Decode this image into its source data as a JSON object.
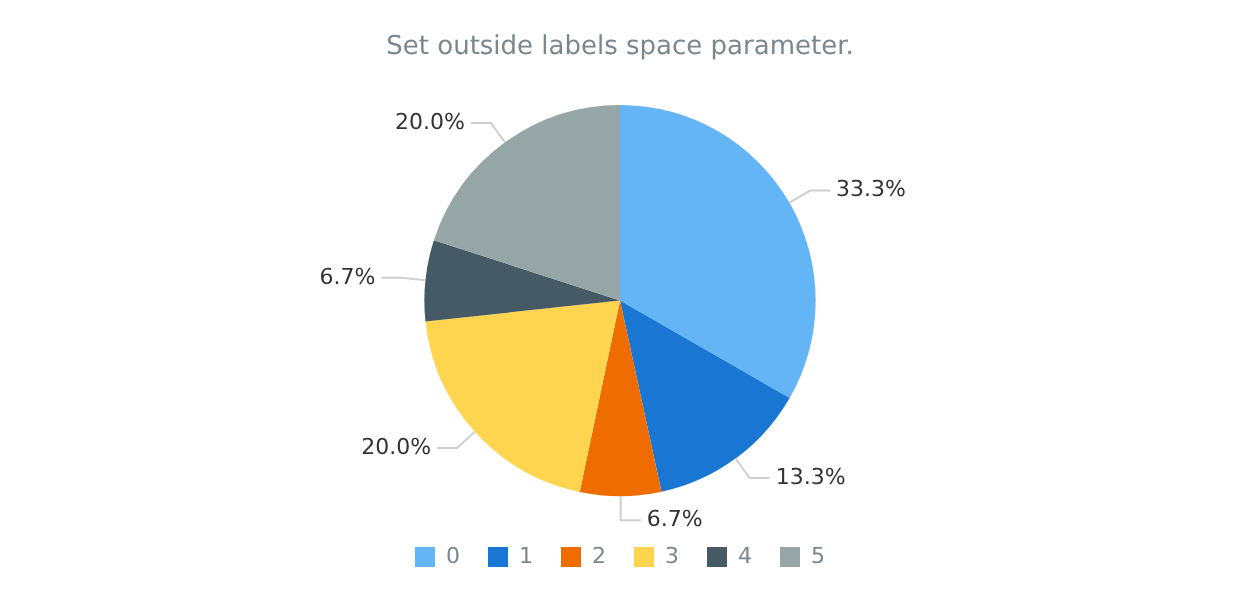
{
  "chart_data": {
    "type": "pie",
    "title": "Set outside labels space parameter.",
    "categories": [
      "0",
      "1",
      "2",
      "3",
      "4",
      "5"
    ],
    "values": [
      33.3,
      13.3,
      6.7,
      20.0,
      6.7,
      20.0
    ],
    "colors": [
      "#64b5f6",
      "#1976d2",
      "#ef6c00",
      "#ffd54f",
      "#455a64",
      "#96a6a6"
    ],
    "value_labels": [
      "33.3%",
      "13.3%",
      "6.7%",
      "20.0%",
      "6.7%",
      "20.0%"
    ],
    "legend": "bottom"
  }
}
